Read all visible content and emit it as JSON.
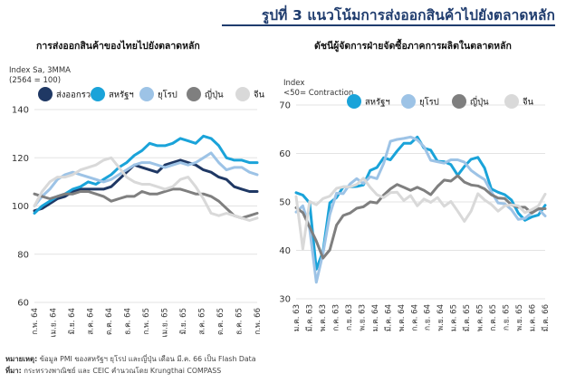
{
  "header": {
    "figure_label": "รูปที่ 3",
    "figure_title": "แนวโน้มการส่งออกสินค้าไปยังตลาดหลัก"
  },
  "notes": {
    "remark_label": "หมายเหตุ:",
    "remark_text": "ข้อมูล PMI ของสหรัฐฯ ยุโรป และญี่ปุ่น เดือน มี.ค. 66 เป็น Flash Data",
    "source_label": "ที่มา:",
    "source_text": "กระทรวงพาณิชย์ และ CEIC คำนวณโดย Krungthai COMPASS"
  },
  "chart_data": [
    {
      "type": "line",
      "title": "การส่งออกสินค้าของไทยไปยังตลาดหลัก",
      "ylabel": "Index Sa, 3MMA",
      "ylabel2": "(2564 = 100)",
      "ylim": [
        60,
        140
      ],
      "yticks": [
        60,
        80,
        100,
        120,
        140
      ],
      "grid": true,
      "legend_position": "top",
      "x_tick_labels": [
        "ก.พ. 64",
        "เม.ย. 64",
        "มิ.ย. 64",
        "ส.ค. 64",
        "ต.ค. 64",
        "ธ.ค. 64",
        "ก.พ. 65",
        "เม.ย. 65",
        "มิ.ย. 65",
        "ส.ค. 65",
        "ต.ค. 65",
        "ธ.ค. 65",
        "ก.พ. 66"
      ],
      "series": [
        {
          "name": "ส่งออกรวม",
          "color": "#1f3864",
          "values": [
            98,
            99,
            101,
            103,
            104,
            106,
            107,
            107,
            107,
            107,
            108,
            111,
            114,
            117,
            116,
            115,
            114,
            117,
            118,
            119,
            118,
            117,
            115,
            114,
            112,
            111,
            108,
            107,
            106,
            106
          ]
        },
        {
          "name": "สหรัฐฯ",
          "color": "#1aa3d9",
          "values": [
            97,
            100,
            102,
            104,
            105,
            107,
            108,
            110,
            109,
            111,
            113,
            116,
            118,
            121,
            123,
            126,
            125,
            125,
            126,
            128,
            127,
            126,
            129,
            128,
            125,
            120,
            119,
            119,
            118,
            118
          ]
        },
        {
          "name": "ยุโรป",
          "color": "#9dc3e6",
          "values": [
            100,
            104,
            107,
            111,
            113,
            114,
            113,
            112,
            111,
            110,
            111,
            113,
            115,
            117,
            118,
            118,
            117,
            116,
            117,
            118,
            117,
            118,
            120,
            122,
            118,
            115,
            116,
            116,
            114,
            113
          ]
        },
        {
          "name": "ญี่ปุ่น",
          "color": "#7f7f7f",
          "values": [
            105,
            104,
            103,
            104,
            105,
            105,
            106,
            106,
            105,
            104,
            102,
            103,
            104,
            104,
            106,
            105,
            105,
            106,
            107,
            107,
            106,
            105,
            105,
            104,
            102,
            99,
            96,
            95,
            96,
            97
          ]
        },
        {
          "name": "จีน",
          "color": "#d9d9d9",
          "values": [
            100,
            106,
            110,
            112,
            112,
            113,
            115,
            116,
            117,
            119,
            120,
            116,
            112,
            110,
            109,
            109,
            108,
            107,
            108,
            111,
            112,
            108,
            103,
            97,
            96,
            97,
            96,
            95,
            94,
            95
          ]
        }
      ]
    },
    {
      "type": "line",
      "title": "ดัชนีผู้จัดการฝ่ายจัดซื้อภาคการผลิตในตลาดหลัก",
      "ylabel": "Index",
      "ylabel2": "<50= Contraction",
      "ylim": [
        30,
        70
      ],
      "yticks": [
        30,
        40,
        50,
        60,
        70
      ],
      "grid": true,
      "legend_position": "top",
      "x_tick_labels": [
        "ม.ค. 63",
        "มี.ค. 63",
        "พ.ค. 63",
        "ก.ค. 63",
        "ก.ย. 63",
        "พ.ย. 63",
        "ม.ค. 64",
        "มี.ค. 64",
        "พ.ค. 64",
        "ก.ค. 64",
        "ก.ย. 64",
        "พ.ย. 64",
        "ม.ค. 65",
        "มี.ค. 65",
        "พ.ค. 65",
        "ก.ค. 65",
        "ก.ย. 65",
        "พ.ย. 65",
        "ม.ค. 66",
        "มี.ค. 66"
      ],
      "series": [
        {
          "name": "สหรัฐฯ",
          "color": "#1aa3d9",
          "values": [
            51.9,
            51.4,
            49.8,
            36.1,
            39.8,
            49.8,
            50.9,
            53.1,
            53.1,
            53.2,
            53.5,
            56.5,
            57.1,
            59.1,
            58.7,
            60.5,
            62.1,
            62.1,
            63.4,
            61.1,
            60.7,
            58.4,
            58.3,
            57.7,
            55.5,
            57.3,
            58.8,
            59.2,
            57.0,
            52.7,
            52.0,
            51.5,
            50.4,
            47.7,
            46.2,
            46.9,
            47.3,
            49.3
          ]
        },
        {
          "name": "ยุโรป",
          "color": "#9dc3e6",
          "values": [
            47.9,
            49.2,
            44.5,
            33.4,
            39.4,
            47.4,
            51.8,
            51.7,
            53.7,
            54.8,
            53.8,
            55.2,
            54.8,
            57.9,
            62.5,
            62.9,
            63.1,
            63.4,
            62.8,
            61.4,
            58.6,
            58.3,
            58.0,
            58.7,
            58.7,
            58.2,
            56.5,
            55.5,
            54.6,
            52.1,
            49.8,
            49.6,
            48.4,
            46.4,
            46.6,
            47.8,
            48.5,
            47.1
          ]
        },
        {
          "name": "ญี่ปุ่น",
          "color": "#7f7f7f",
          "values": [
            48.8,
            47.8,
            44.8,
            41.9,
            38.4,
            40.1,
            45.2,
            47.2,
            47.7,
            48.7,
            49.0,
            50.0,
            49.8,
            51.4,
            52.7,
            53.6,
            53.0,
            52.4,
            53.0,
            52.4,
            51.5,
            53.2,
            54.5,
            54.3,
            55.4,
            54.1,
            53.5,
            53.3,
            52.7,
            51.5,
            50.8,
            50.7,
            49.4,
            48.9,
            48.9,
            47.7,
            48.6,
            48.6
          ]
        },
        {
          "name": "จีน",
          "color": "#d9d9d9",
          "values": [
            51.1,
            40.3,
            50.1,
            49.4,
            50.7,
            51.2,
            52.8,
            53.1,
            53.1,
            53.6,
            54.9,
            53.0,
            51.5,
            50.9,
            51.9,
            52.0,
            50.3,
            51.3,
            49.2,
            50.6,
            49.9,
            50.9,
            49.1,
            50.1,
            48.1,
            46.0,
            48.1,
            51.7,
            50.4,
            49.5,
            48.1,
            49.2,
            49.4,
            49.2,
            47.8,
            48.4,
            49.2,
            51.6
          ]
        }
      ]
    }
  ]
}
